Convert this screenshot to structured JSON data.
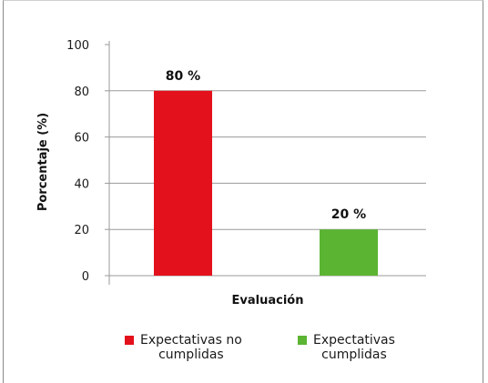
{
  "chart_data": {
    "type": "bar",
    "title": "",
    "xlabel": "Evaluación",
    "ylabel": "Porcentaje (%)",
    "ylim": [
      0,
      100
    ],
    "yticks": [
      0,
      20,
      40,
      60,
      80,
      100
    ],
    "grid": true,
    "legend_position": "bottom",
    "categories": [
      "Expectativas no cumplidas",
      "Expectativas cumplidas"
    ],
    "values": [
      80,
      20
    ],
    "data_labels": [
      "80 %",
      "20 %"
    ],
    "colors": [
      "#e3111b",
      "#5bb432"
    ]
  },
  "legend": [
    {
      "line1": "Expectativas no",
      "line2": "cumplidas",
      "color": "#e3111b"
    },
    {
      "line1": "Expectativas",
      "line2": "cumplidas",
      "color": "#5bb432"
    }
  ]
}
